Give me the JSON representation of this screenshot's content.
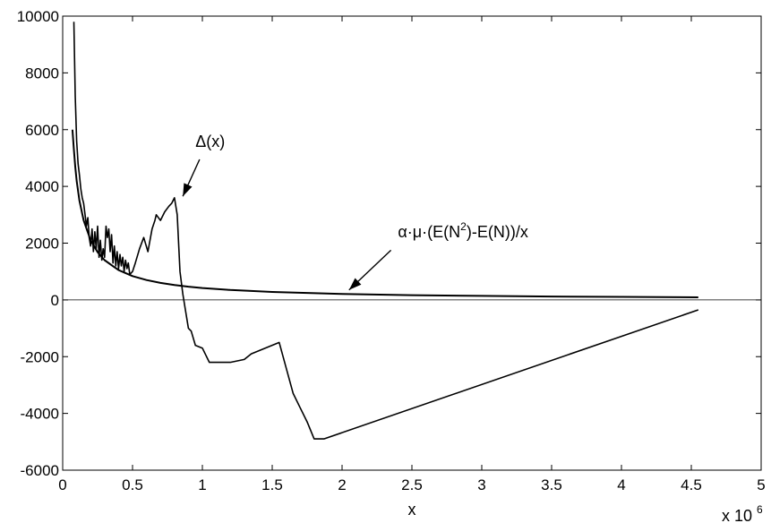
{
  "chart_data": {
    "type": "line",
    "title": "",
    "xlabel": "x",
    "ylabel": "",
    "x_multiplier_label": "x 10",
    "x_multiplier_exponent": "6",
    "xlim": [
      0,
      5
    ],
    "ylim": [
      -6000,
      10000
    ],
    "x_ticks": [
      0,
      0.5,
      1,
      1.5,
      2,
      2.5,
      3,
      3.5,
      4,
      4.5,
      5
    ],
    "x_tick_labels": [
      "0",
      "0.5",
      "1",
      "1.5",
      "2",
      "2.5",
      "3",
      "3.5",
      "4",
      "4.5",
      "5"
    ],
    "y_ticks": [
      -6000,
      -4000,
      -2000,
      0,
      2000,
      4000,
      6000,
      8000,
      10000
    ],
    "y_tick_labels": [
      "-6000",
      "-4000",
      "-2000",
      "0",
      "2000",
      "4000",
      "6000",
      "8000",
      "10000"
    ],
    "grid": false,
    "zero_line": true,
    "line_color": "#000000",
    "series": [
      {
        "name": "Δ(x)",
        "x": [
          0.08,
          0.09,
          0.1,
          0.11,
          0.12,
          0.13,
          0.14,
          0.15,
          0.16,
          0.17,
          0.18,
          0.19,
          0.2,
          0.21,
          0.22,
          0.23,
          0.24,
          0.25,
          0.26,
          0.27,
          0.28,
          0.29,
          0.3,
          0.31,
          0.32,
          0.33,
          0.34,
          0.35,
          0.36,
          0.37,
          0.38,
          0.39,
          0.4,
          0.41,
          0.42,
          0.43,
          0.44,
          0.45,
          0.46,
          0.47,
          0.48,
          0.5,
          0.52,
          0.55,
          0.58,
          0.61,
          0.64,
          0.66,
          0.67,
          0.7,
          0.73,
          0.76,
          0.78,
          0.8,
          0.82,
          0.84,
          0.86,
          0.88,
          0.9,
          0.92,
          0.95,
          1.0,
          1.05,
          1.1,
          1.2,
          1.3,
          1.35,
          1.45,
          1.55,
          1.65,
          1.7,
          1.75,
          1.8,
          1.87,
          4.55
        ],
        "y": [
          9800,
          7200,
          5600,
          4800,
          4400,
          3900,
          3600,
          3400,
          3000,
          2600,
          2900,
          2200,
          1900,
          2500,
          1700,
          2400,
          1800,
          2600,
          1500,
          2100,
          1400,
          1800,
          1500,
          2600,
          2200,
          2500,
          1700,
          2300,
          1300,
          1900,
          1200,
          1700,
          1100,
          1600,
          1200,
          1500,
          1000,
          1400,
          1100,
          1300,
          900,
          1000,
          1300,
          1800,
          2200,
          1700,
          2500,
          2800,
          3000,
          2800,
          3100,
          3300,
          3400,
          3600,
          3000,
          1000,
          200,
          -400,
          -1000,
          -1100,
          -1600,
          -1700,
          -2200,
          -2200,
          -2200,
          -2100,
          -1900,
          -1700,
          -1500,
          -3300,
          -3800,
          -4300,
          -4900,
          -4900,
          -350
        ]
      },
      {
        "name": "α·μ·(E(N²)-E(N))/x",
        "x": [
          0.07,
          0.08,
          0.09,
          0.1,
          0.12,
          0.15,
          0.2,
          0.25,
          0.3,
          0.4,
          0.5,
          0.6,
          0.7,
          0.8,
          0.9,
          1.0,
          1.2,
          1.5,
          2.0,
          2.5,
          3.0,
          3.5,
          4.0,
          4.55
        ],
        "y": [
          6000,
          5300,
          4700,
          4200,
          3500,
          2800,
          2100,
          1680,
          1400,
          1050,
          840,
          700,
          600,
          525,
          467,
          420,
          350,
          280,
          210,
          168,
          140,
          120,
          105,
          92
        ]
      }
    ],
    "annotations": [
      {
        "text": "Δ(x)",
        "text_x": 0.95,
        "text_y": 5400,
        "arrow_from": [
          0.98,
          4950
        ],
        "arrow_to": [
          0.86,
          3650
        ]
      },
      {
        "text": "α·μ·(E(N",
        "sup": "2",
        "text_rest": ")-E(N))/x",
        "text_x": 2.4,
        "text_y": 2200,
        "arrow_from": [
          2.35,
          1750
        ],
        "arrow_to": [
          2.05,
          350
        ]
      }
    ]
  }
}
